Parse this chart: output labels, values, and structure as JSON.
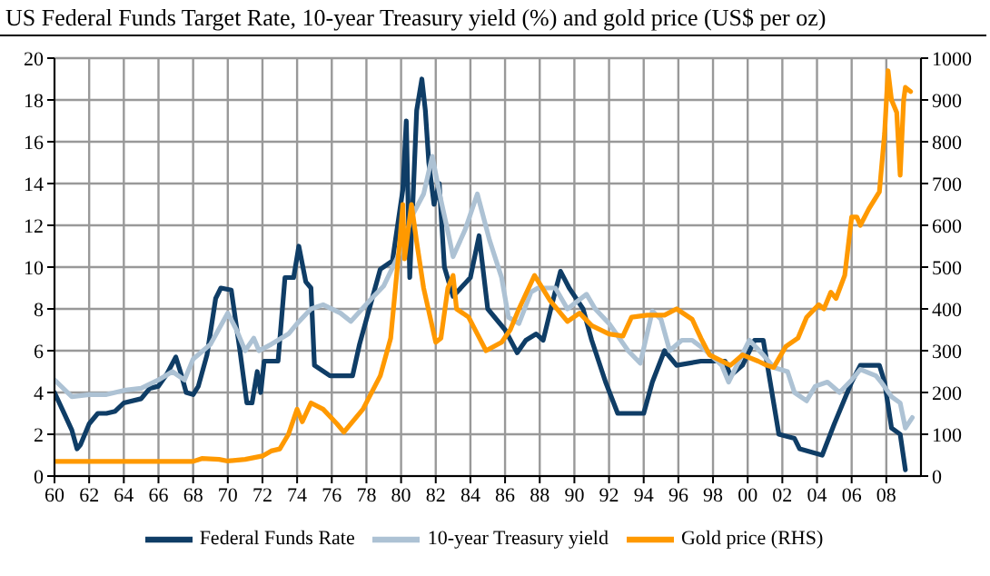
{
  "chart_data": {
    "type": "line",
    "title": "US Federal Funds Target Rate, 10-year Treasury yield (%) and gold price (US$ per oz)",
    "xlim": [
      1960,
      2010
    ],
    "xticks": [
      {
        "value": 1960,
        "label": "60"
      },
      {
        "value": 1962,
        "label": "62"
      },
      {
        "value": 1964,
        "label": "64"
      },
      {
        "value": 1966,
        "label": "66"
      },
      {
        "value": 1968,
        "label": "68"
      },
      {
        "value": 1970,
        "label": "70"
      },
      {
        "value": 1972,
        "label": "72"
      },
      {
        "value": 1974,
        "label": "74"
      },
      {
        "value": 1976,
        "label": "76"
      },
      {
        "value": 1978,
        "label": "78"
      },
      {
        "value": 1980,
        "label": "80"
      },
      {
        "value": 1982,
        "label": "82"
      },
      {
        "value": 1984,
        "label": "84"
      },
      {
        "value": 1986,
        "label": "86"
      },
      {
        "value": 1988,
        "label": "88"
      },
      {
        "value": 1990,
        "label": "90"
      },
      {
        "value": 1992,
        "label": "92"
      },
      {
        "value": 1994,
        "label": "94"
      },
      {
        "value": 1996,
        "label": "96"
      },
      {
        "value": 1998,
        "label": "98"
      },
      {
        "value": 2000,
        "label": "00"
      },
      {
        "value": 2002,
        "label": "02"
      },
      {
        "value": 2004,
        "label": "04"
      },
      {
        "value": 2006,
        "label": "06"
      },
      {
        "value": 2008,
        "label": "08"
      }
    ],
    "ylim": [
      0,
      20
    ],
    "yticks": [
      0,
      2,
      4,
      6,
      8,
      10,
      12,
      14,
      16,
      18,
      20
    ],
    "y2lim": [
      0,
      1000
    ],
    "y2ticks": [
      0,
      100,
      200,
      300,
      400,
      500,
      600,
      700,
      800,
      900,
      1000
    ],
    "grid": true,
    "legend": "bottom",
    "marker": "none",
    "line_style": "solid",
    "series": [
      {
        "name": "Federal Funds Rate",
        "color": "#0f3d66",
        "x": [
          1960,
          1960.5,
          1961,
          1961.3,
          1961.5,
          1962,
          1962.5,
          1963,
          1963.5,
          1964,
          1965,
          1965.5,
          1966,
          1966.5,
          1967,
          1967.3,
          1967.6,
          1968,
          1968.3,
          1968.8,
          1969.3,
          1969.6,
          1970.2,
          1970.7,
          1971.1,
          1971.4,
          1971.7,
          1971.9,
          1972.1,
          1972.9,
          1973.3,
          1973.8,
          1974.1,
          1974.5,
          1974.8,
          1975,
          1975.9,
          1977.2,
          1977.6,
          1978.8,
          1979.5,
          1980.1,
          1980.3,
          1980.5,
          1980.9,
          1981.2,
          1981.4,
          1981.6,
          1981.9,
          1982.2,
          1982.5,
          1983,
          1984,
          1984.5,
          1985,
          1986,
          1986.7,
          1987.2,
          1987.8,
          1988.2,
          1988.7,
          1989.2,
          1989.7,
          1990.5,
          1991,
          1991.8,
          1992.5,
          1994,
          1994.5,
          1995.2,
          1995.9,
          1997.3,
          1998.7,
          1999,
          1999.7,
          2000.4,
          2000.9,
          2001.3,
          2001.8,
          2002.7,
          2003,
          2004.3,
          2005,
          2006,
          2006.5,
          2007.6,
          2007.9,
          2008.3,
          2008.8,
          2009.1
        ],
        "values": [
          4.0,
          3.1,
          2.2,
          1.3,
          1.5,
          2.5,
          3.0,
          3.0,
          3.1,
          3.5,
          3.7,
          4.2,
          4.3,
          4.9,
          5.7,
          4.9,
          4.0,
          3.9,
          4.3,
          5.8,
          8.5,
          9.0,
          8.9,
          6.0,
          3.5,
          3.5,
          5.0,
          4.0,
          5.5,
          5.5,
          9.5,
          9.5,
          11.0,
          9.3,
          9.0,
          5.3,
          4.8,
          4.8,
          6.3,
          9.9,
          10.3,
          13.7,
          17.0,
          9.5,
          17.5,
          19.0,
          17.5,
          15.0,
          13.0,
          14.0,
          10.0,
          8.6,
          9.5,
          11.5,
          8.0,
          7.0,
          5.9,
          6.5,
          6.8,
          6.5,
          8.2,
          9.8,
          9.0,
          8.0,
          6.5,
          4.5,
          3.0,
          3.0,
          4.5,
          6.0,
          5.3,
          5.5,
          5.5,
          4.8,
          5.3,
          6.5,
          6.5,
          4.5,
          2.0,
          1.8,
          1.3,
          1.0,
          2.5,
          4.5,
          5.3,
          5.3,
          4.5,
          2.3,
          2.0,
          0.3
        ]
      },
      {
        "name": "10-year Treasury yield",
        "color": "#adc2d4",
        "x": [
          1960,
          1961,
          1962,
          1963,
          1964,
          1965,
          1966,
          1966.8,
          1967.5,
          1968,
          1969,
          1970,
          1970.5,
          1971,
          1971.5,
          1971.8,
          1972.5,
          1973.5,
          1974,
          1974.8,
          1975.5,
          1976.5,
          1977.1,
          1978.3,
          1979,
          1980.1,
          1980.6,
          1981.3,
          1981.8,
          1982.3,
          1982.7,
          1983,
          1983.7,
          1984.4,
          1985.1,
          1985.8,
          1986.2,
          1986.8,
          1987.5,
          1987.9,
          1988.9,
          1989.6,
          1990.7,
          1991.2,
          1992,
          1993.1,
          1993.8,
          1994.5,
          1995,
          1995.5,
          1996.2,
          1996.8,
          1997.6,
          1998.5,
          1998.9,
          2000.1,
          2000.9,
          2001.5,
          2002.3,
          2002.7,
          2003.4,
          2003.9,
          2004.6,
          2005.3,
          2006,
          2006.5,
          2007.4,
          2007.7,
          2008.3,
          2008.8,
          2009.1,
          2009.5
        ],
        "values": [
          4.6,
          3.8,
          3.9,
          3.9,
          4.1,
          4.2,
          4.6,
          5.0,
          4.6,
          5.6,
          6.3,
          7.8,
          7.0,
          6.0,
          6.6,
          6.0,
          6.3,
          6.8,
          7.3,
          8.0,
          8.2,
          7.8,
          7.4,
          8.5,
          9.1,
          11.0,
          12.4,
          13.5,
          15.3,
          13.2,
          11.7,
          10.5,
          11.8,
          13.5,
          11.3,
          9.5,
          7.6,
          7.3,
          8.8,
          9.0,
          9.0,
          8.0,
          8.7,
          8.0,
          7.3,
          6.0,
          5.4,
          7.9,
          7.5,
          6.0,
          6.5,
          6.5,
          6.0,
          5.3,
          4.5,
          6.5,
          5.8,
          5.2,
          5.0,
          4.0,
          3.6,
          4.3,
          4.5,
          4.0,
          4.6,
          5.1,
          4.8,
          4.5,
          3.8,
          3.5,
          2.3,
          2.8
        ]
      },
      {
        "name": "Gold price (RHS)",
        "color": "#ff9900",
        "axis": "y2",
        "x": [
          1960,
          1968,
          1968.5,
          1969.5,
          1970,
          1971,
          1972,
          1972.5,
          1973,
          1973.5,
          1974,
          1974.3,
          1974.8,
          1975.5,
          1976.3,
          1976.7,
          1977.8,
          1978.8,
          1979.4,
          1979.9,
          1980.1,
          1980.2,
          1980.6,
          1980.9,
          1981.3,
          1982,
          1982.3,
          1982.7,
          1983,
          1983.2,
          1983.9,
          1984.4,
          1984.9,
          1985.8,
          1986.3,
          1986.8,
          1987.7,
          1988.6,
          1989.6,
          1990.3,
          1991,
          1992,
          1992.8,
          1993.3,
          1994.2,
          1995.2,
          1995.9,
          1996.8,
          1997.3,
          1997.8,
          1999,
          1999.7,
          2000.6,
          2001.1,
          2001.5,
          2002.2,
          2002.9,
          2003.4,
          2004.1,
          2004.4,
          2004.8,
          2005.1,
          2005.6,
          2006,
          2006.3,
          2006.5,
          2007,
          2007.6,
          2007.9,
          2008.1,
          2008.3,
          2008.6,
          2008.8,
          2009,
          2009.1,
          2009.4
        ],
        "values": [
          35,
          35,
          42,
          40,
          36,
          40,
          48,
          60,
          65,
          100,
          160,
          130,
          175,
          160,
          125,
          105,
          160,
          240,
          330,
          550,
          650,
          520,
          650,
          560,
          450,
          320,
          330,
          450,
          480,
          400,
          380,
          340,
          300,
          320,
          350,
          400,
          480,
          420,
          370,
          390,
          360,
          340,
          335,
          380,
          385,
          385,
          400,
          375,
          330,
          290,
          265,
          290,
          275,
          265,
          260,
          310,
          330,
          380,
          410,
          400,
          440,
          425,
          480,
          620,
          620,
          600,
          640,
          680,
          820,
          970,
          900,
          870,
          720,
          900,
          930,
          920
        ]
      }
    ]
  }
}
